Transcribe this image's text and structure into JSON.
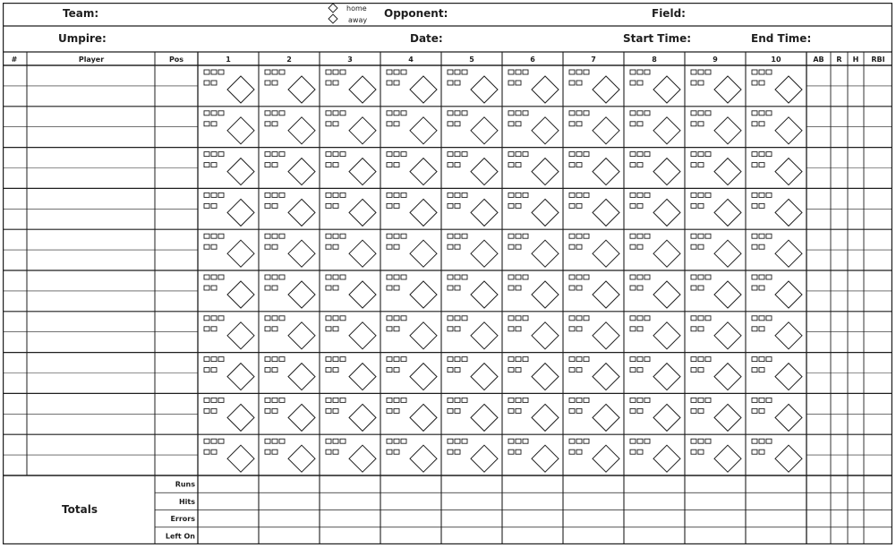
{
  "header": {
    "team_label": "Team:",
    "opponent_label": "Opponent:",
    "field_label": "Field:",
    "umpire_label": "Umpire:",
    "date_label": "Date:",
    "start_time_label": "Start Time:",
    "end_time_label": "End Time:",
    "home_label": "home",
    "away_label": "away"
  },
  "columns": {
    "number": "#",
    "player": "Player",
    "position": "Pos",
    "innings": [
      "1",
      "2",
      "3",
      "4",
      "5",
      "6",
      "7",
      "8",
      "9",
      "10"
    ],
    "stats": [
      "AB",
      "R",
      "H",
      "RBI"
    ]
  },
  "lineup_slots": 10,
  "totals": {
    "title": "Totals",
    "rows": [
      "Runs",
      "Hits",
      "Errors",
      "Left On"
    ]
  },
  "colors": {
    "ink": "#1e1e1e",
    "paper": "#ffffff"
  }
}
